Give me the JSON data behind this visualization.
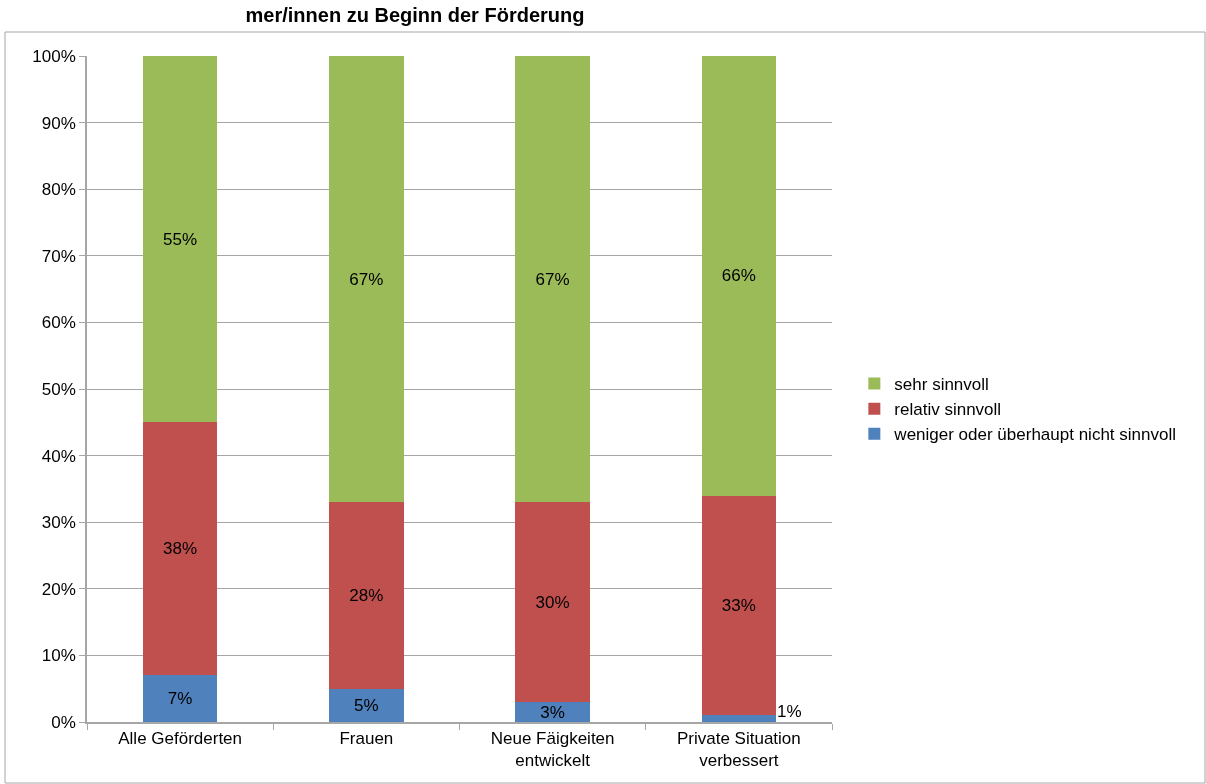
{
  "chart_data": {
    "type": "bar",
    "stacked": true,
    "title": "mer/innen zu Beginn der Förderung",
    "categories": [
      "Alle Geförderten",
      "Frauen",
      "Neue Fäigkeiten entwickelt",
      "Private Situation verbessert"
    ],
    "series": [
      {
        "name": "weniger oder überhaupt nicht sinnvoll",
        "color": "#4f81bd",
        "values": [
          7,
          5,
          3,
          1
        ],
        "value_labels": [
          "7%",
          "5%",
          "3%",
          "1%"
        ]
      },
      {
        "name": "relativ sinnvoll",
        "color": "#c0504d",
        "values": [
          38,
          28,
          30,
          33
        ],
        "value_labels": [
          "38%",
          "28%",
          "30%",
          "33%"
        ]
      },
      {
        "name": "sehr sinnvoll",
        "color": "#9bbb59",
        "values": [
          55,
          67,
          67,
          66
        ],
        "value_labels": [
          "55%",
          "67%",
          "67%",
          "66%"
        ]
      }
    ],
    "ylim": [
      0,
      100
    ],
    "yticks": [
      {
        "value": 0,
        "label": "0%"
      },
      {
        "value": 10,
        "label": "10%"
      },
      {
        "value": 20,
        "label": "20%"
      },
      {
        "value": 30,
        "label": "30%"
      },
      {
        "value": 40,
        "label": "40%"
      },
      {
        "value": 50,
        "label": "50%"
      },
      {
        "value": 60,
        "label": "60%"
      },
      {
        "value": 70,
        "label": "70%"
      },
      {
        "value": 80,
        "label": "80%"
      },
      {
        "value": 90,
        "label": "90%"
      },
      {
        "value": 100,
        "label": "100%"
      }
    ],
    "grid": "y",
    "legend": "right"
  }
}
